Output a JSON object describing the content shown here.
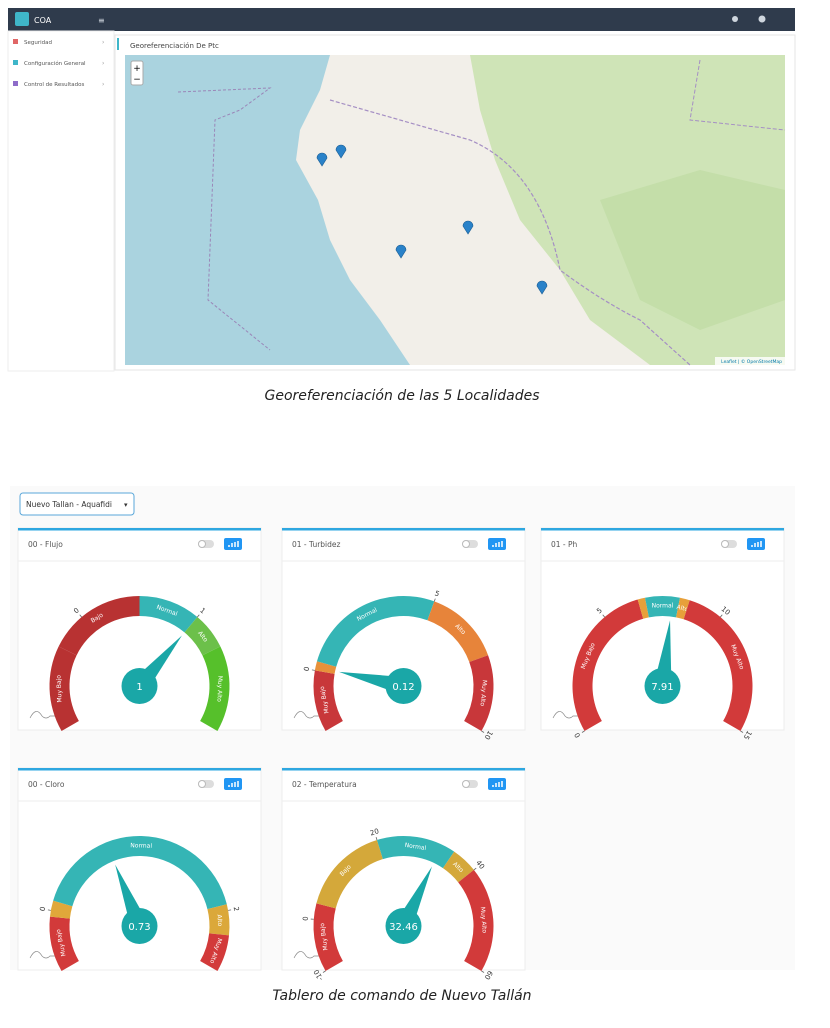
{
  "topbar": {
    "brand": "COA"
  },
  "sidebar": {
    "items": [
      "Seguridad",
      "Configuración General",
      "Control de Resultados"
    ]
  },
  "map_panel": {
    "title": "Georeferenciación De Ptc",
    "zoom_in": "+",
    "zoom_out": "−",
    "attribution": "Leaflet | © OpenStreetMap"
  },
  "caption_top": "Georeferenciación de las 5 Localidades",
  "dashboard": {
    "selector": "Nuevo Tallan - Aquafidi",
    "gauges": [
      {
        "title": "00 - Flujo",
        "value": 1,
        "range": [
          -1,
          2
        ],
        "ticks": [
          0,
          1
        ],
        "bands": [
          {
            "label": "Muy Bajo",
            "from": -1,
            "to": -0.3,
            "color": "#b83232"
          },
          {
            "label": "Bajo",
            "from": -0.3,
            "to": 0.5,
            "color": "#b83232"
          },
          {
            "label": "Normal",
            "from": 0.5,
            "to": 1,
            "color": "#35b5b5"
          },
          {
            "label": "Alto",
            "from": 1,
            "to": 1.3,
            "color": "#6cc04a"
          },
          {
            "label": "Muy Alto",
            "from": 1.3,
            "to": 2,
            "color": "#56c02b"
          }
        ]
      },
      {
        "title": "01 - Turbidez",
        "value": 0.12,
        "range": [
          -2,
          10
        ],
        "ticks": [
          0,
          5,
          10
        ],
        "bands": [
          {
            "label": "Muy Bajo",
            "from": -2,
            "to": 0,
            "color": "#c8373a"
          },
          {
            "label": null,
            "from": 0,
            "to": 0.3,
            "color": "#e7913a"
          },
          {
            "label": "Normal",
            "from": 0.3,
            "to": 5,
            "color": "#35b5b5"
          },
          {
            "label": "Alto",
            "from": 5,
            "to": 7.5,
            "color": "#e7843a"
          },
          {
            "label": "Muy Alto",
            "from": 7.5,
            "to": 10,
            "color": "#c8373a"
          }
        ]
      },
      {
        "title": "01 - Ph",
        "value": 7.91,
        "range": [
          0,
          15
        ],
        "ticks": [
          0,
          5,
          10,
          15
        ],
        "bands": [
          {
            "label": "Muy Bajo",
            "from": 0,
            "to": 6.5,
            "color": "#d23a3a"
          },
          {
            "label": null,
            "from": 6.5,
            "to": 6.8,
            "color": "#e7a03a"
          },
          {
            "label": "Normal",
            "from": 6.8,
            "to": 8.2,
            "color": "#35b5b5"
          },
          {
            "label": "Alto",
            "from": 8.2,
            "to": 8.6,
            "color": "#e7a03a"
          },
          {
            "label": "Muy Alto",
            "from": 8.6,
            "to": 15,
            "color": "#d23a3a"
          }
        ]
      },
      {
        "title": "00 - Cloro",
        "value": 0.73,
        "range": [
          -0.5,
          2.5
        ],
        "ticks": [
          0,
          2
        ],
        "bands": [
          {
            "label": "Muy Bajo",
            "from": -0.5,
            "to": -0.05,
            "color": "#d23a3a"
          },
          {
            "label": null,
            "from": -0.05,
            "to": 0.08,
            "color": "#e0a83a"
          },
          {
            "label": "Normal",
            "from": 0.08,
            "to": 1.95,
            "color": "#35b5b5"
          },
          {
            "label": "Alto",
            "from": 1.95,
            "to": 2.2,
            "color": "#dba83a"
          },
          {
            "label": "Muy Alto",
            "from": 2.2,
            "to": 2.5,
            "color": "#d23a3a"
          }
        ]
      },
      {
        "title": "02 - Temperatura",
        "value": 32.46,
        "range": [
          -10,
          60
        ],
        "ticks": [
          -10,
          0,
          20,
          40,
          60
        ],
        "bands": [
          {
            "label": "Muy Bajo",
            "from": -10,
            "to": 3,
            "color": "#d23a3a"
          },
          {
            "label": "Bajo",
            "from": 3,
            "to": 20,
            "color": "#d4a83a"
          },
          {
            "label": "Normal",
            "from": 20,
            "to": 35,
            "color": "#35b5b5"
          },
          {
            "label": "Alto",
            "from": 35,
            "to": 40,
            "color": "#d4a83a"
          },
          {
            "label": "Muy Alto",
            "from": 40,
            "to": 60,
            "color": "#d23a3a"
          }
        ]
      }
    ]
  },
  "caption_bottom": "Tablero de comando de Nuevo Tallán"
}
